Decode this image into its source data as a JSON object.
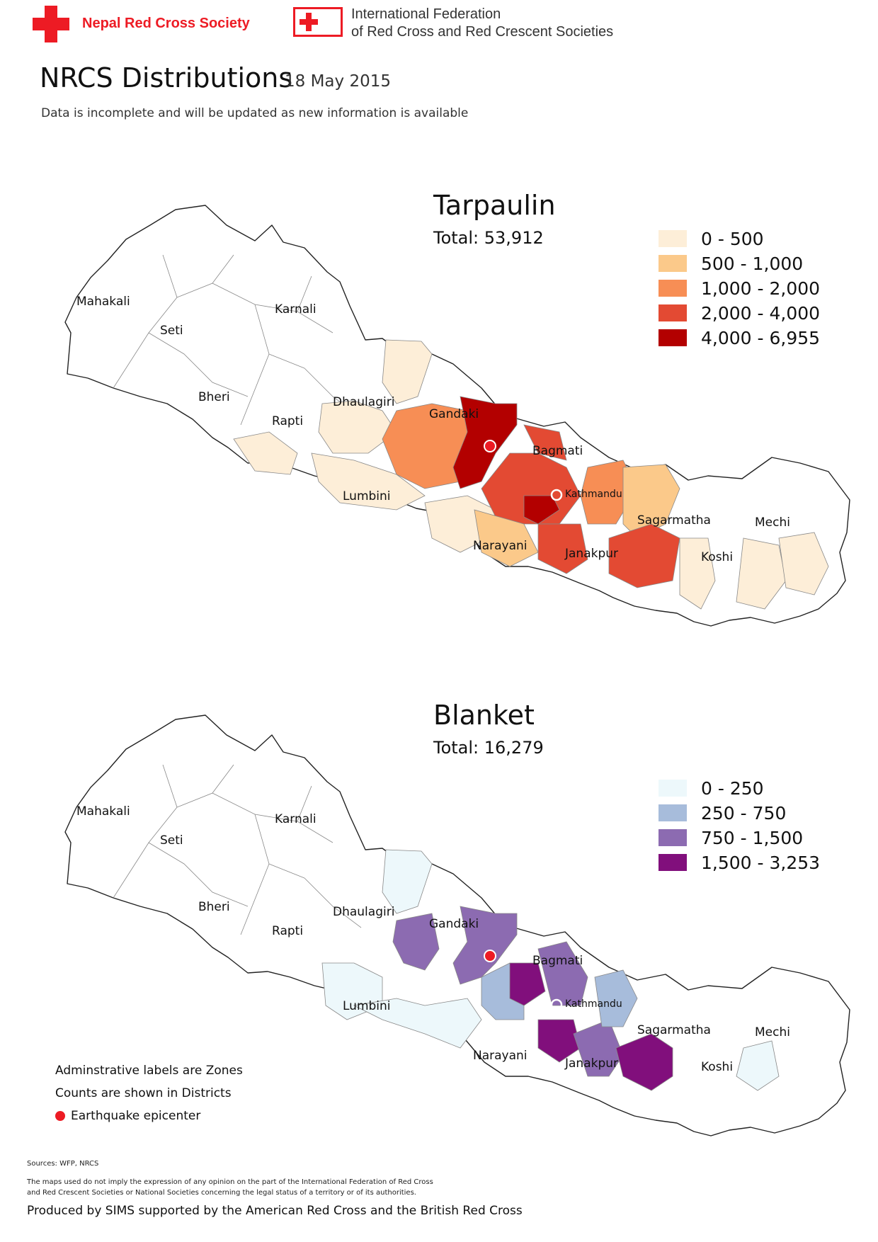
{
  "header": {
    "nrcs_name": "Nepal Red Cross Society",
    "ifrc_line1": "International Federation",
    "ifrc_line2": "of Red Cross and Red Crescent Societies",
    "title": "NRCS Distributions",
    "date": "18 May 2015",
    "subtitle": "Data is incomplete and will be updated as new information is available"
  },
  "maps": [
    {
      "title": "Tarpaulin",
      "total": "Total: 53,912",
      "legend": [
        {
          "label": "0 - 500",
          "color": "#fdeed8"
        },
        {
          "label": "500 - 1,000",
          "color": "#fbc98a"
        },
        {
          "label": "1,000 - 2,000",
          "color": "#f78e55"
        },
        {
          "label": "2,000 - 4,000",
          "color": "#e34a33"
        },
        {
          "label": "4,000 - 6,955",
          "color": "#b30000"
        }
      ]
    },
    {
      "title": "Blanket",
      "total": "Total: 16,279",
      "legend": [
        {
          "label": "0 - 250",
          "color": "#edf8fb"
        },
        {
          "label": "250 - 750",
          "color": "#a7bcdb"
        },
        {
          "label": "750 - 1,500",
          "color": "#8c6bb1"
        },
        {
          "label": "1,500 - 3,253",
          "color": "#810f7c"
        }
      ]
    }
  ],
  "zones": {
    "mahakali": "Mahakali",
    "seti": "Seti",
    "karnali": "Karnali",
    "bheri": "Bheri",
    "rapti": "Rapti",
    "dhaulagiri": "Dhaulagiri",
    "gandaki": "Gandaki",
    "bagmati": "Bagmati",
    "lumbini": "Lumbini",
    "kathmandu": "Kathmandu",
    "sagarmatha": "Sagarmatha",
    "mechi": "Mechi",
    "narayani": "Narayani",
    "janakpur": "Janakpur",
    "koshi": "Koshi"
  },
  "notes": {
    "line1": "Adminstrative labels are Zones",
    "line2": "Counts are shown in Districts",
    "line3": "Earthquake epicenter"
  },
  "footer": {
    "sources": "Sources: WFP, NRCS",
    "disclaimer1": "The maps used do not imply the expression of any opinion on the part of the International Federation of Red Cross",
    "disclaimer2": "and Red Crescent Societies or National Societies concerning the legal status of a territory or of its authorities.",
    "produced": "Produced by SIMS supported by the American Red Cross and the British Red Cross"
  }
}
